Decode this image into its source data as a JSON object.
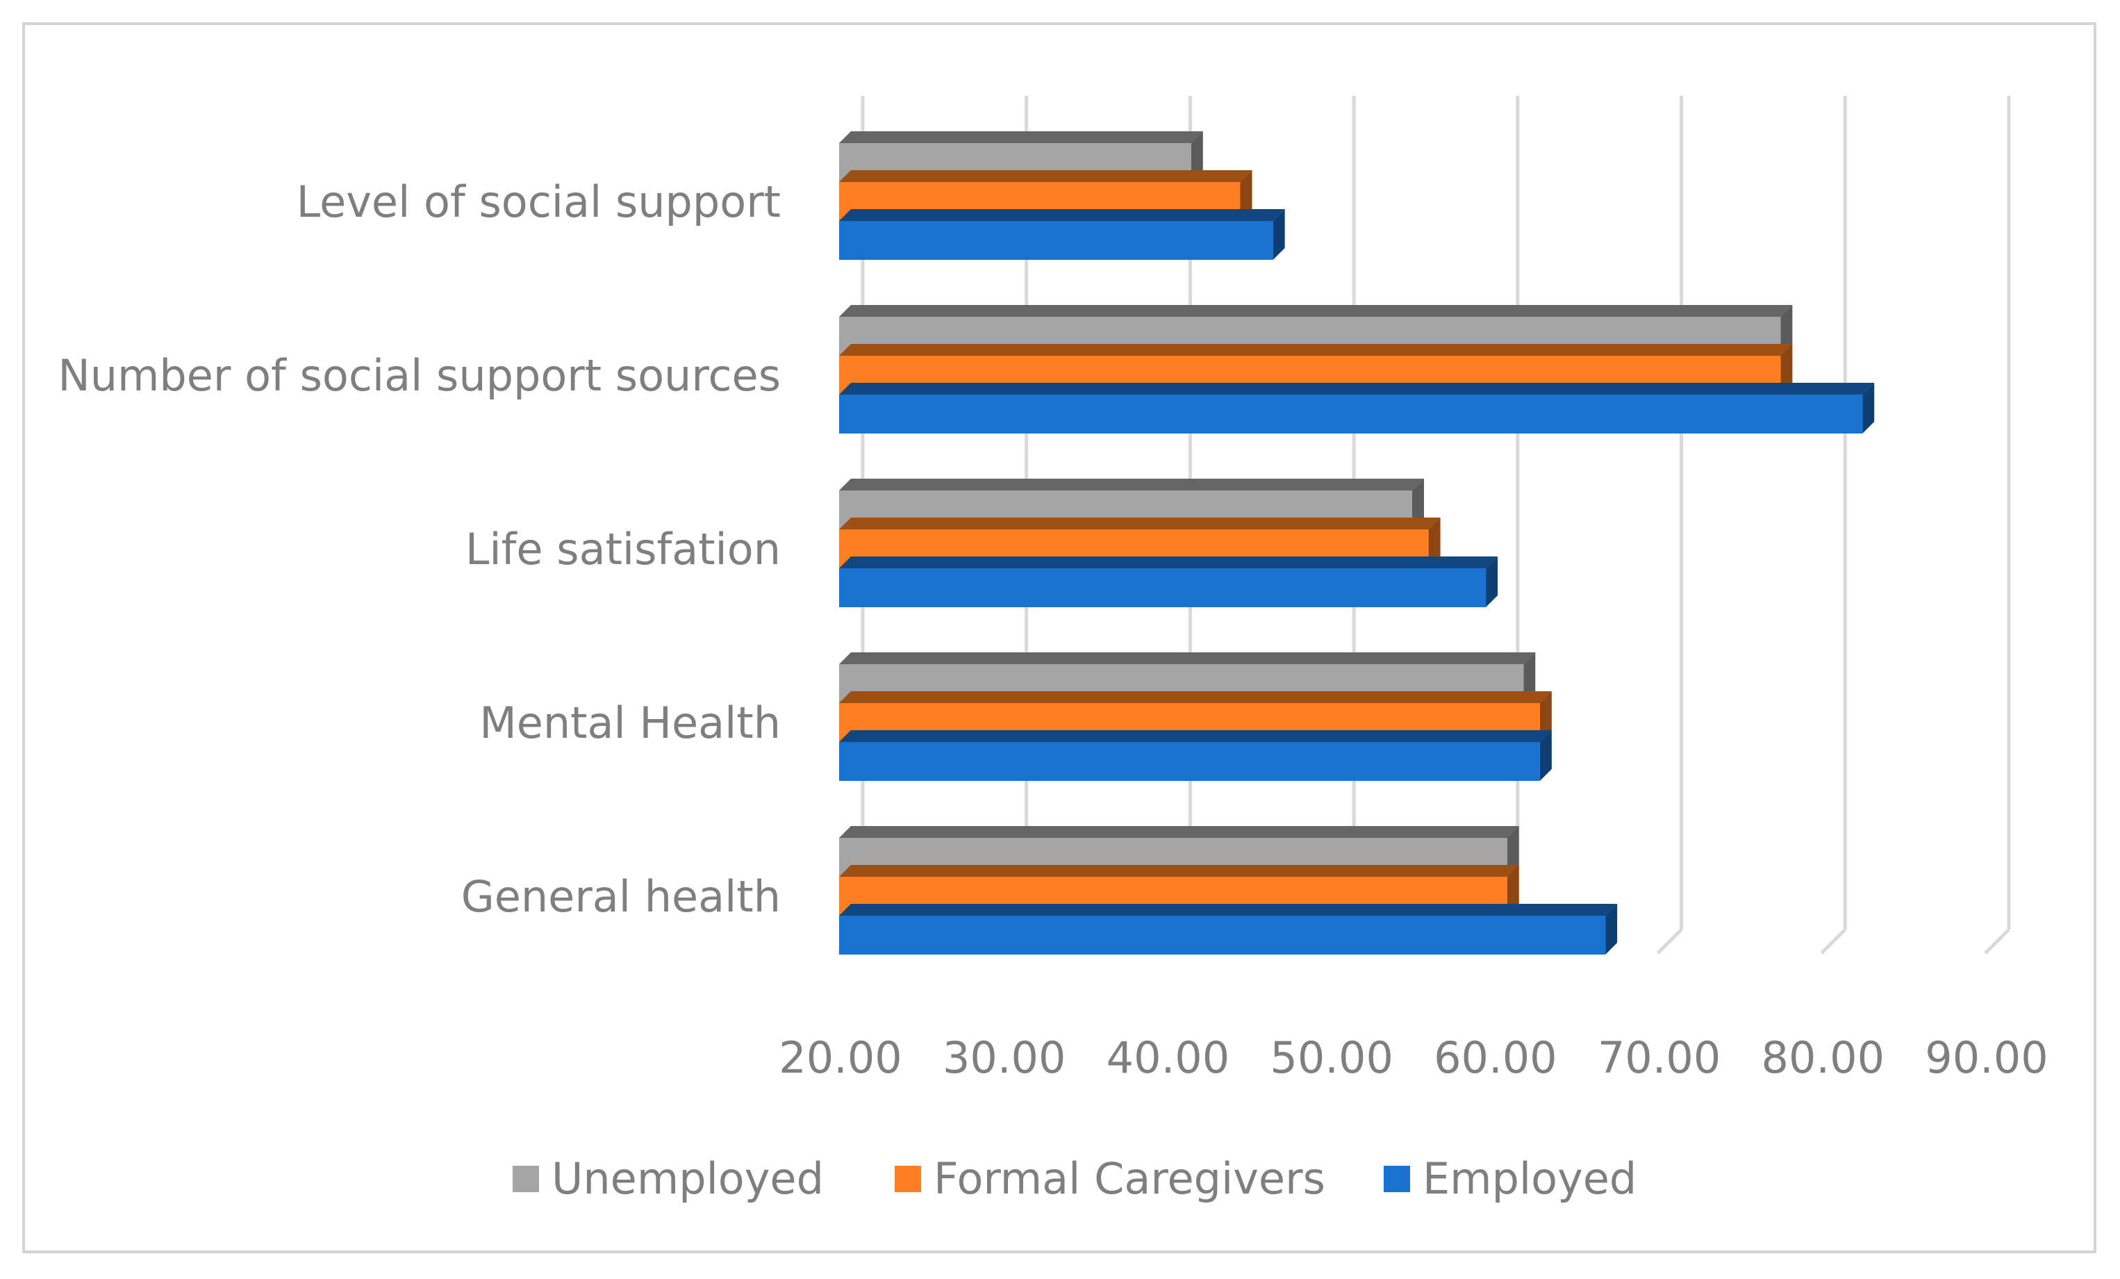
{
  "chart_data": {
    "type": "bar",
    "orientation": "horizontal",
    "style": "3d-clustered",
    "title": "",
    "xlabel": "",
    "ylabel": "",
    "xlim": [
      20,
      90
    ],
    "x_ticks": [
      20,
      30,
      40,
      50,
      60,
      70,
      80,
      90
    ],
    "x_tick_labels": [
      "20.00",
      "30.00",
      "40.00",
      "50.00",
      "60.00",
      "70.00",
      "80.00",
      "90.00"
    ],
    "grid": true,
    "legend_position": "bottom",
    "categories": [
      "Level of social support",
      "Number of social support sources",
      "Life satisfation",
      "Mental Health",
      "General health"
    ],
    "series": [
      {
        "name": "Unemployed",
        "color": "#a5a5a5",
        "values": [
          41.5,
          77.5,
          55.0,
          61.8,
          60.8
        ]
      },
      {
        "name": "Formal Caregivers",
        "color": "#fe7f21",
        "values": [
          44.5,
          77.5,
          56.0,
          62.8,
          60.8
        ]
      },
      {
        "name": "Employed",
        "color": "#1a72d0",
        "values": [
          46.5,
          82.5,
          59.5,
          62.8,
          66.8
        ]
      }
    ]
  }
}
